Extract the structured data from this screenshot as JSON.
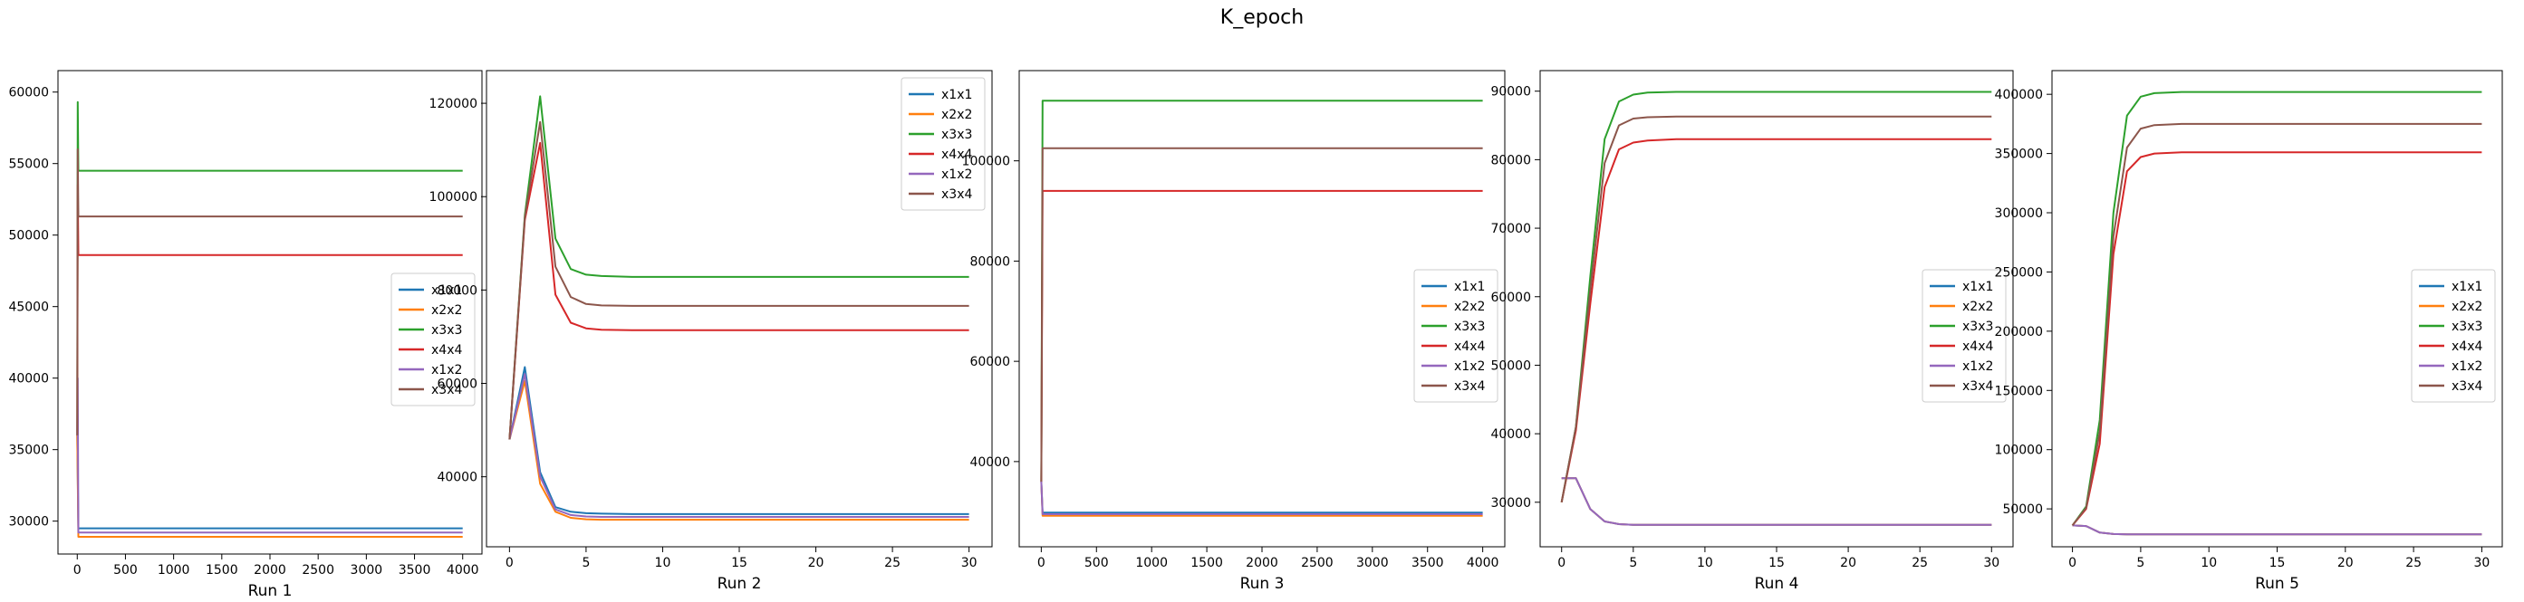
{
  "figure": {
    "suptitle": "K_epoch"
  },
  "chart_data": [
    {
      "type": "line",
      "xlabel": "Run 1",
      "xlim": [
        -200,
        4200
      ],
      "ylim": [
        27700,
        61500
      ],
      "xticks": [
        0,
        500,
        1000,
        1500,
        2000,
        2500,
        3000,
        3500,
        4000
      ],
      "yticks": [
        30000,
        35000,
        40000,
        45000,
        50000,
        55000,
        60000
      ],
      "legend": "center-right",
      "series": [
        {
          "name": "x1x1",
          "color": "#1f77b4",
          "points": [
            [
              0,
              36000
            ],
            [
              12,
              29500
            ],
            [
              4000,
              29500
            ]
          ]
        },
        {
          "name": "x2x2",
          "color": "#ff7f0e",
          "points": [
            [
              0,
              36000
            ],
            [
              12,
              28900
            ],
            [
              4000,
              28900
            ]
          ]
        },
        {
          "name": "x3x3",
          "color": "#2ca02c",
          "points": [
            [
              0,
              36000
            ],
            [
              5,
              59300
            ],
            [
              12,
              54500
            ],
            [
              4000,
              54500
            ]
          ]
        },
        {
          "name": "x4x4",
          "color": "#d62728",
          "points": [
            [
              0,
              36000
            ],
            [
              5,
              53500
            ],
            [
              12,
              48600
            ],
            [
              4000,
              48600
            ]
          ]
        },
        {
          "name": "x1x2",
          "color": "#9467bd",
          "points": [
            [
              0,
              36000
            ],
            [
              5,
              40000
            ],
            [
              12,
              29200
            ],
            [
              4000,
              29200
            ]
          ]
        },
        {
          "name": "x3x4",
          "color": "#8c564b",
          "points": [
            [
              0,
              36000
            ],
            [
              5,
              56000
            ],
            [
              12,
              51300
            ],
            [
              4000,
              51300
            ]
          ]
        }
      ]
    },
    {
      "type": "line",
      "xlabel": "Run 2",
      "xlim": [
        -1.5,
        31.5
      ],
      "ylim": [
        25000,
        127000
      ],
      "xticks": [
        0,
        5,
        10,
        15,
        20,
        25,
        30
      ],
      "yticks": [
        40000,
        60000,
        80000,
        100000,
        120000
      ],
      "legend": "top-right",
      "series": [
        {
          "name": "x1x1",
          "color": "#1f77b4",
          "points": [
            [
              0,
              48000
            ],
            [
              1,
              63500
            ],
            [
              2,
              41000
            ],
            [
              3,
              33500
            ],
            [
              4,
              32500
            ],
            [
              5,
              32200
            ],
            [
              6,
              32100
            ],
            [
              8,
              32000
            ],
            [
              30,
              32000
            ]
          ]
        },
        {
          "name": "x2x2",
          "color": "#ff7f0e",
          "points": [
            [
              0,
              48000
            ],
            [
              1,
              60500
            ],
            [
              2,
              38500
            ],
            [
              3,
              32500
            ],
            [
              4,
              31200
            ],
            [
              5,
              30900
            ],
            [
              6,
              30800
            ],
            [
              8,
              30800
            ],
            [
              30,
              30800
            ]
          ]
        },
        {
          "name": "x3x3",
          "color": "#2ca02c",
          "points": [
            [
              0,
              48000
            ],
            [
              1,
              96000
            ],
            [
              2,
              121500
            ],
            [
              3,
              91000
            ],
            [
              4,
              84500
            ],
            [
              5,
              83300
            ],
            [
              6,
              83000
            ],
            [
              8,
              82800
            ],
            [
              30,
              82800
            ]
          ]
        },
        {
          "name": "x4x4",
          "color": "#d62728",
          "points": [
            [
              0,
              48000
            ],
            [
              1,
              95000
            ],
            [
              2,
              111500
            ],
            [
              3,
              79000
            ],
            [
              4,
              73000
            ],
            [
              5,
              71800
            ],
            [
              6,
              71500
            ],
            [
              8,
              71400
            ],
            [
              30,
              71400
            ]
          ]
        },
        {
          "name": "x1x2",
          "color": "#9467bd",
          "points": [
            [
              0,
              48000
            ],
            [
              1,
              62000
            ],
            [
              2,
              40000
            ],
            [
              3,
              33000
            ],
            [
              4,
              31800
            ],
            [
              5,
              31500
            ],
            [
              6,
              31400
            ],
            [
              8,
              31400
            ],
            [
              30,
              31400
            ]
          ]
        },
        {
          "name": "x3x4",
          "color": "#8c564b",
          "points": [
            [
              0,
              48000
            ],
            [
              1,
              95500
            ],
            [
              2,
              116000
            ],
            [
              3,
              85000
            ],
            [
              4,
              78500
            ],
            [
              5,
              77000
            ],
            [
              6,
              76700
            ],
            [
              8,
              76600
            ],
            [
              30,
              76600
            ]
          ]
        }
      ]
    },
    {
      "type": "line",
      "xlabel": "Run 3",
      "xlim": [
        -200,
        4200
      ],
      "ylim": [
        23000,
        118000
      ],
      "xticks": [
        0,
        500,
        1000,
        1500,
        2000,
        2500,
        3000,
        3500,
        4000
      ],
      "yticks": [
        40000,
        60000,
        80000,
        100000
      ],
      "legend": "center-right",
      "series": [
        {
          "name": "x1x1",
          "color": "#1f77b4",
          "points": [
            [
              0,
              36000
            ],
            [
              12,
              29800
            ],
            [
              4000,
              29800
            ]
          ]
        },
        {
          "name": "x2x2",
          "color": "#ff7f0e",
          "points": [
            [
              0,
              36000
            ],
            [
              12,
              29200
            ],
            [
              4000,
              29200
            ]
          ]
        },
        {
          "name": "x3x3",
          "color": "#2ca02c",
          "points": [
            [
              0,
              36000
            ],
            [
              12,
              112000
            ],
            [
              4000,
              112000
            ]
          ]
        },
        {
          "name": "x4x4",
          "color": "#d62728",
          "points": [
            [
              0,
              36000
            ],
            [
              12,
              94000
            ],
            [
              4000,
              94000
            ]
          ]
        },
        {
          "name": "x1x2",
          "color": "#9467bd",
          "points": [
            [
              0,
              36000
            ],
            [
              12,
              29500
            ],
            [
              4000,
              29500
            ]
          ]
        },
        {
          "name": "x3x4",
          "color": "#8c564b",
          "points": [
            [
              0,
              36000
            ],
            [
              12,
              102500
            ],
            [
              4000,
              102500
            ]
          ]
        }
      ]
    },
    {
      "type": "line",
      "xlabel": "Run 4",
      "xlim": [
        -1.5,
        31.5
      ],
      "ylim": [
        23500,
        93000
      ],
      "xticks": [
        0,
        5,
        10,
        15,
        20,
        25,
        30
      ],
      "yticks": [
        30000,
        40000,
        50000,
        60000,
        70000,
        80000,
        90000
      ],
      "legend": "center-right",
      "series": [
        {
          "name": "x1x1",
          "color": "#1f77b4",
          "points": [
            [
              0,
              33500
            ],
            [
              1,
              33500
            ],
            [
              2,
              29000
            ],
            [
              3,
              27200
            ],
            [
              4,
              26800
            ],
            [
              5,
              26700
            ],
            [
              8,
              26700
            ],
            [
              30,
              26700
            ]
          ]
        },
        {
          "name": "x2x2",
          "color": "#ff7f0e",
          "points": [
            [
              0,
              33500
            ],
            [
              1,
              33500
            ],
            [
              2,
              29000
            ],
            [
              3,
              27200
            ],
            [
              4,
              26800
            ],
            [
              5,
              26700
            ],
            [
              8,
              26700
            ],
            [
              30,
              26700
            ]
          ]
        },
        {
          "name": "x3x3",
          "color": "#2ca02c",
          "points": [
            [
              0,
              30000
            ],
            [
              1,
              41000
            ],
            [
              2,
              63000
            ],
            [
              3,
              83000
            ],
            [
              4,
              88500
            ],
            [
              5,
              89500
            ],
            [
              6,
              89800
            ],
            [
              8,
              89900
            ],
            [
              30,
              89900
            ]
          ]
        },
        {
          "name": "x4x4",
          "color": "#d62728",
          "points": [
            [
              0,
              30000
            ],
            [
              1,
              40500
            ],
            [
              2,
              59000
            ],
            [
              3,
              76000
            ],
            [
              4,
              81500
            ],
            [
              5,
              82500
            ],
            [
              6,
              82800
            ],
            [
              8,
              83000
            ],
            [
              30,
              83000
            ]
          ]
        },
        {
          "name": "x1x2",
          "color": "#9467bd",
          "points": [
            [
              0,
              33500
            ],
            [
              1,
              33500
            ],
            [
              2,
              29000
            ],
            [
              3,
              27200
            ],
            [
              4,
              26800
            ],
            [
              5,
              26700
            ],
            [
              8,
              26700
            ],
            [
              30,
              26700
            ]
          ]
        },
        {
          "name": "x3x4",
          "color": "#8c564b",
          "points": [
            [
              0,
              30000
            ],
            [
              1,
              41000
            ],
            [
              2,
              61000
            ],
            [
              3,
              79500
            ],
            [
              4,
              85000
            ],
            [
              5,
              86000
            ],
            [
              6,
              86200
            ],
            [
              8,
              86300
            ],
            [
              30,
              86300
            ]
          ]
        }
      ]
    },
    {
      "type": "line",
      "xlabel": "Run 5",
      "xlim": [
        -1.5,
        31.5
      ],
      "ylim": [
        18000,
        420000
      ],
      "xticks": [
        0,
        5,
        10,
        15,
        20,
        25,
        30
      ],
      "yticks": [
        50000,
        100000,
        150000,
        200000,
        250000,
        300000,
        350000,
        400000
      ],
      "legend": "center-right",
      "series": [
        {
          "name": "x1x1",
          "color": "#1f77b4",
          "points": [
            [
              0,
              36000
            ],
            [
              1,
              35500
            ],
            [
              2,
              30000
            ],
            [
              3,
              28800
            ],
            [
              4,
              28500
            ],
            [
              5,
              28500
            ],
            [
              30,
              28500
            ]
          ]
        },
        {
          "name": "x2x2",
          "color": "#ff7f0e",
          "points": [
            [
              0,
              36000
            ],
            [
              1,
              35500
            ],
            [
              2,
              30000
            ],
            [
              3,
              28800
            ],
            [
              4,
              28500
            ],
            [
              5,
              28500
            ],
            [
              30,
              28500
            ]
          ]
        },
        {
          "name": "x3x3",
          "color": "#2ca02c",
          "points": [
            [
              0,
              36000
            ],
            [
              1,
              52000
            ],
            [
              2,
              125000
            ],
            [
              3,
              300000
            ],
            [
              4,
              382000
            ],
            [
              5,
              398000
            ],
            [
              6,
              401000
            ],
            [
              8,
              402000
            ],
            [
              30,
              402000
            ]
          ]
        },
        {
          "name": "x4x4",
          "color": "#d62728",
          "points": [
            [
              0,
              36000
            ],
            [
              1,
              50000
            ],
            [
              2,
              105000
            ],
            [
              3,
              265000
            ],
            [
              4,
              335000
            ],
            [
              5,
              347000
            ],
            [
              6,
              350000
            ],
            [
              8,
              351000
            ],
            [
              30,
              351000
            ]
          ]
        },
        {
          "name": "x1x2",
          "color": "#9467bd",
          "points": [
            [
              0,
              36000
            ],
            [
              1,
              35500
            ],
            [
              2,
              30000
            ],
            [
              3,
              28800
            ],
            [
              4,
              28500
            ],
            [
              5,
              28500
            ],
            [
              30,
              28500
            ]
          ]
        },
        {
          "name": "x3x4",
          "color": "#8c564b",
          "points": [
            [
              0,
              36000
            ],
            [
              1,
              51000
            ],
            [
              2,
              115000
            ],
            [
              3,
              280000
            ],
            [
              4,
              355000
            ],
            [
              5,
              371000
            ],
            [
              6,
              374000
            ],
            [
              8,
              375000
            ],
            [
              30,
              375000
            ]
          ]
        }
      ]
    }
  ]
}
